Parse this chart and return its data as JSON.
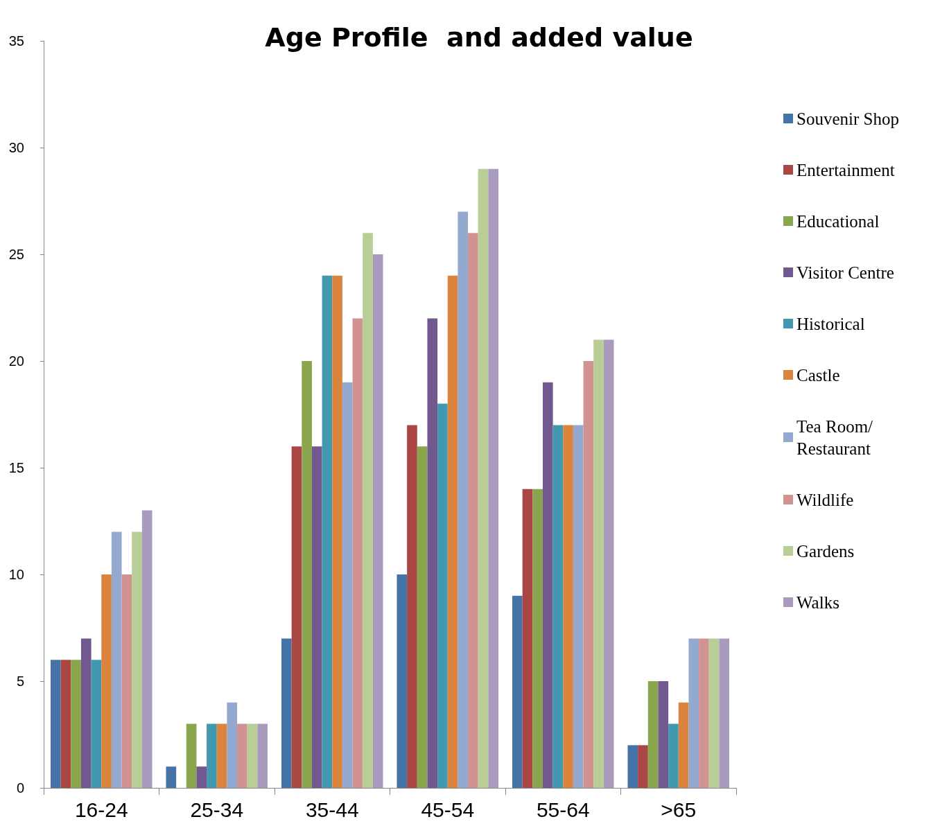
{
  "chart_data": {
    "type": "bar",
    "title": "Age Profile  and added value",
    "categories": [
      "16-24",
      "25-34",
      "35-44",
      "45-54",
      "55-64",
      ">65"
    ],
    "series": [
      {
        "name": "Souvenir Shop",
        "color": "#4572a7",
        "values": [
          6,
          1,
          7,
          10,
          9,
          2
        ]
      },
      {
        "name": "Entertainment",
        "color": "#aa4643",
        "values": [
          6,
          0,
          16,
          17,
          14,
          2
        ]
      },
      {
        "name": "Educational",
        "color": "#89a54e",
        "values": [
          6,
          3,
          20,
          16,
          14,
          5
        ]
      },
      {
        "name": "Visitor Centre",
        "color": "#71588f",
        "values": [
          7,
          1,
          16,
          22,
          19,
          5
        ]
      },
      {
        "name": "Historical",
        "color": "#4198af",
        "values": [
          6,
          3,
          24,
          18,
          17,
          3
        ]
      },
      {
        "name": "Castle",
        "color": "#db843d",
        "values": [
          10,
          3,
          24,
          24,
          17,
          4
        ]
      },
      {
        "name": "Tea Room/ Restaurant",
        "color": "#93a9cf",
        "values": [
          12,
          4,
          19,
          27,
          17,
          7
        ]
      },
      {
        "name": "Wildlife",
        "color": "#d19392",
        "values": [
          10,
          3,
          22,
          26,
          20,
          7
        ]
      },
      {
        "name": "Gardens",
        "color": "#b9cd96",
        "values": [
          12,
          3,
          26,
          29,
          21,
          7
        ]
      },
      {
        "name": "Walks",
        "color": "#a99bbd",
        "values": [
          13,
          3,
          25,
          29,
          21,
          7
        ]
      }
    ],
    "ylim": [
      0,
      35
    ],
    "yticks": [
      0,
      5,
      10,
      15,
      20,
      25,
      30,
      35
    ],
    "grid": false,
    "legend": "right"
  }
}
